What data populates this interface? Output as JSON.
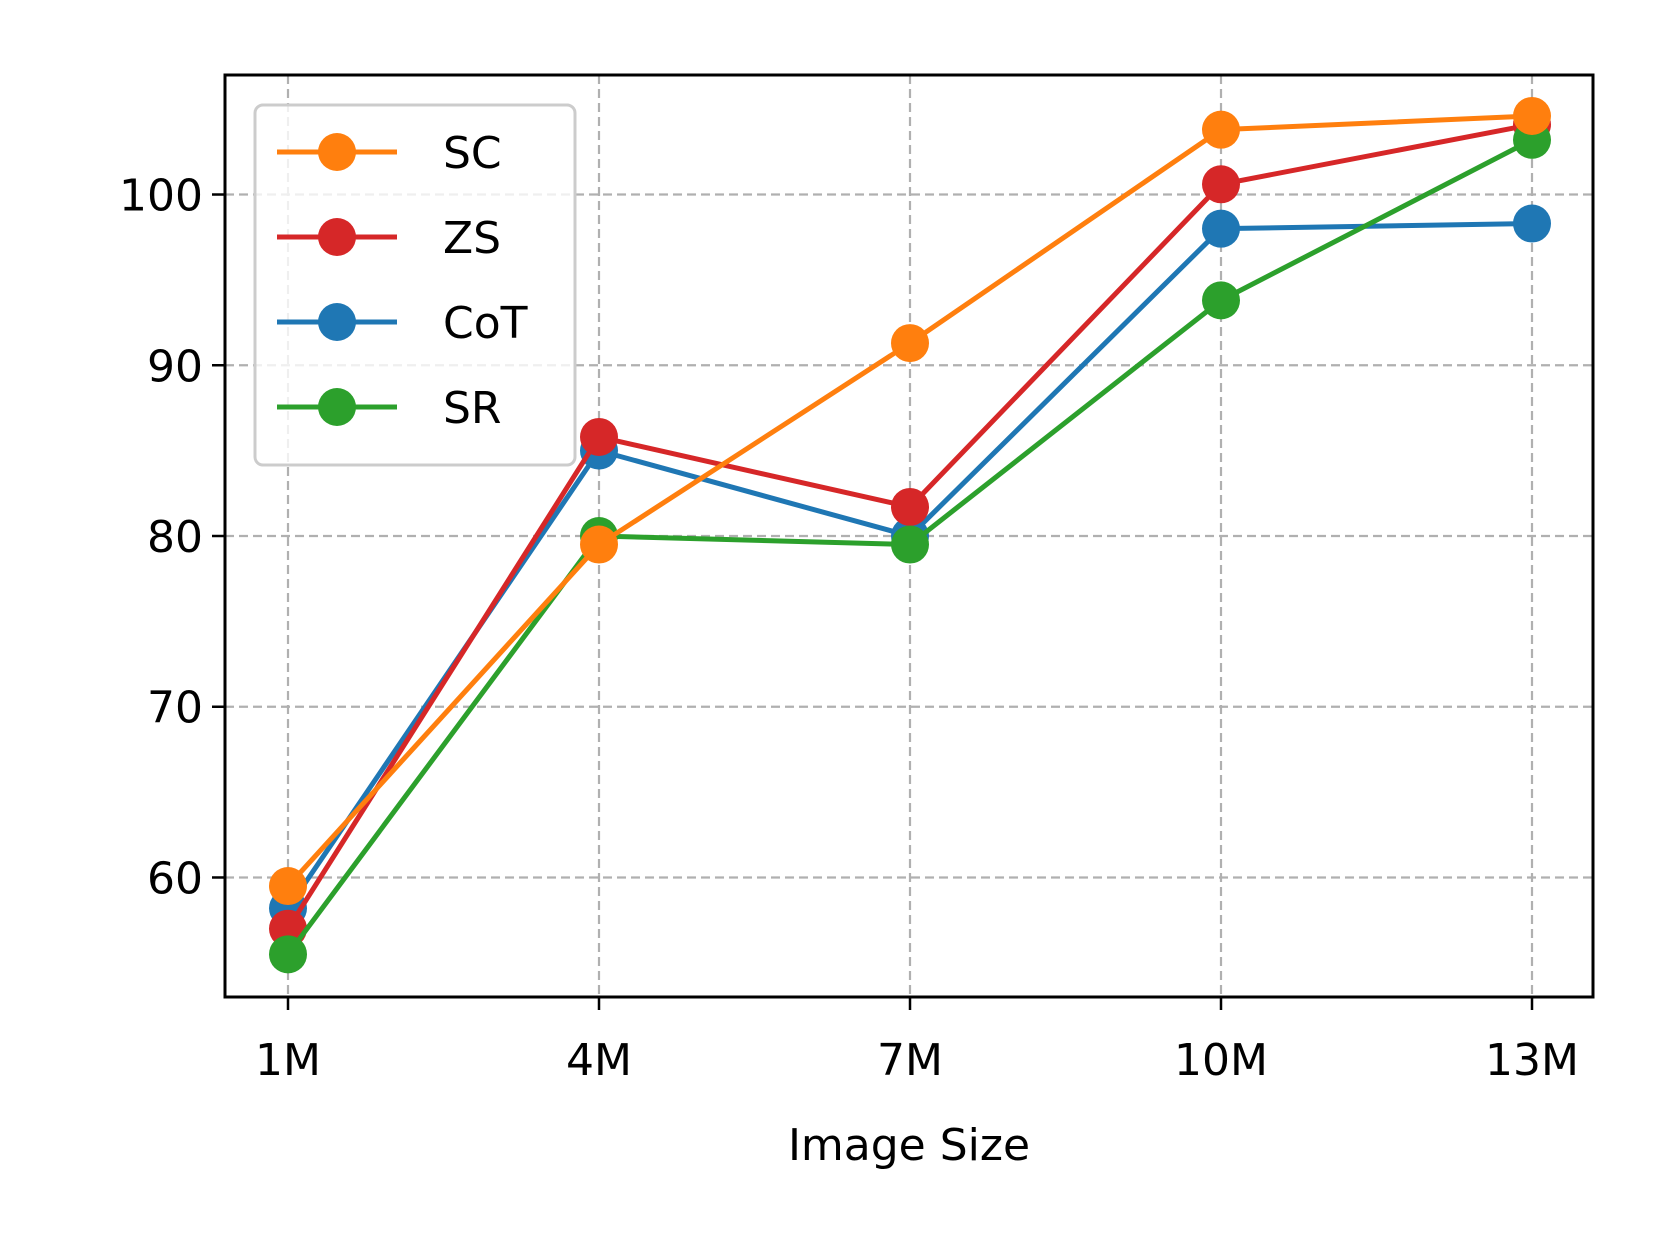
{
  "chart_data": {
    "type": "line",
    "title": "",
    "xlabel": "Image Size",
    "ylabel": "",
    "categories": [
      "1M",
      "4M",
      "7M",
      "10M",
      "13M"
    ],
    "yticks": [
      60,
      70,
      80,
      90,
      100
    ],
    "ylim": [
      53,
      107
    ],
    "grid": true,
    "legend_position": "top-left",
    "series": [
      {
        "name": "SC",
        "color": "#ff7f0e",
        "values": [
          59.5,
          79.5,
          91.3,
          103.8,
          104.6
        ]
      },
      {
        "name": "ZS",
        "color": "#d62728",
        "values": [
          57.0,
          85.8,
          81.7,
          100.6,
          104.1
        ]
      },
      {
        "name": "CoT",
        "color": "#1f77b4",
        "values": [
          58.2,
          85.0,
          80.0,
          98.0,
          98.3
        ]
      },
      {
        "name": "SR",
        "color": "#2ca02c",
        "values": [
          55.5,
          80.0,
          79.5,
          93.8,
          103.2
        ]
      }
    ]
  }
}
